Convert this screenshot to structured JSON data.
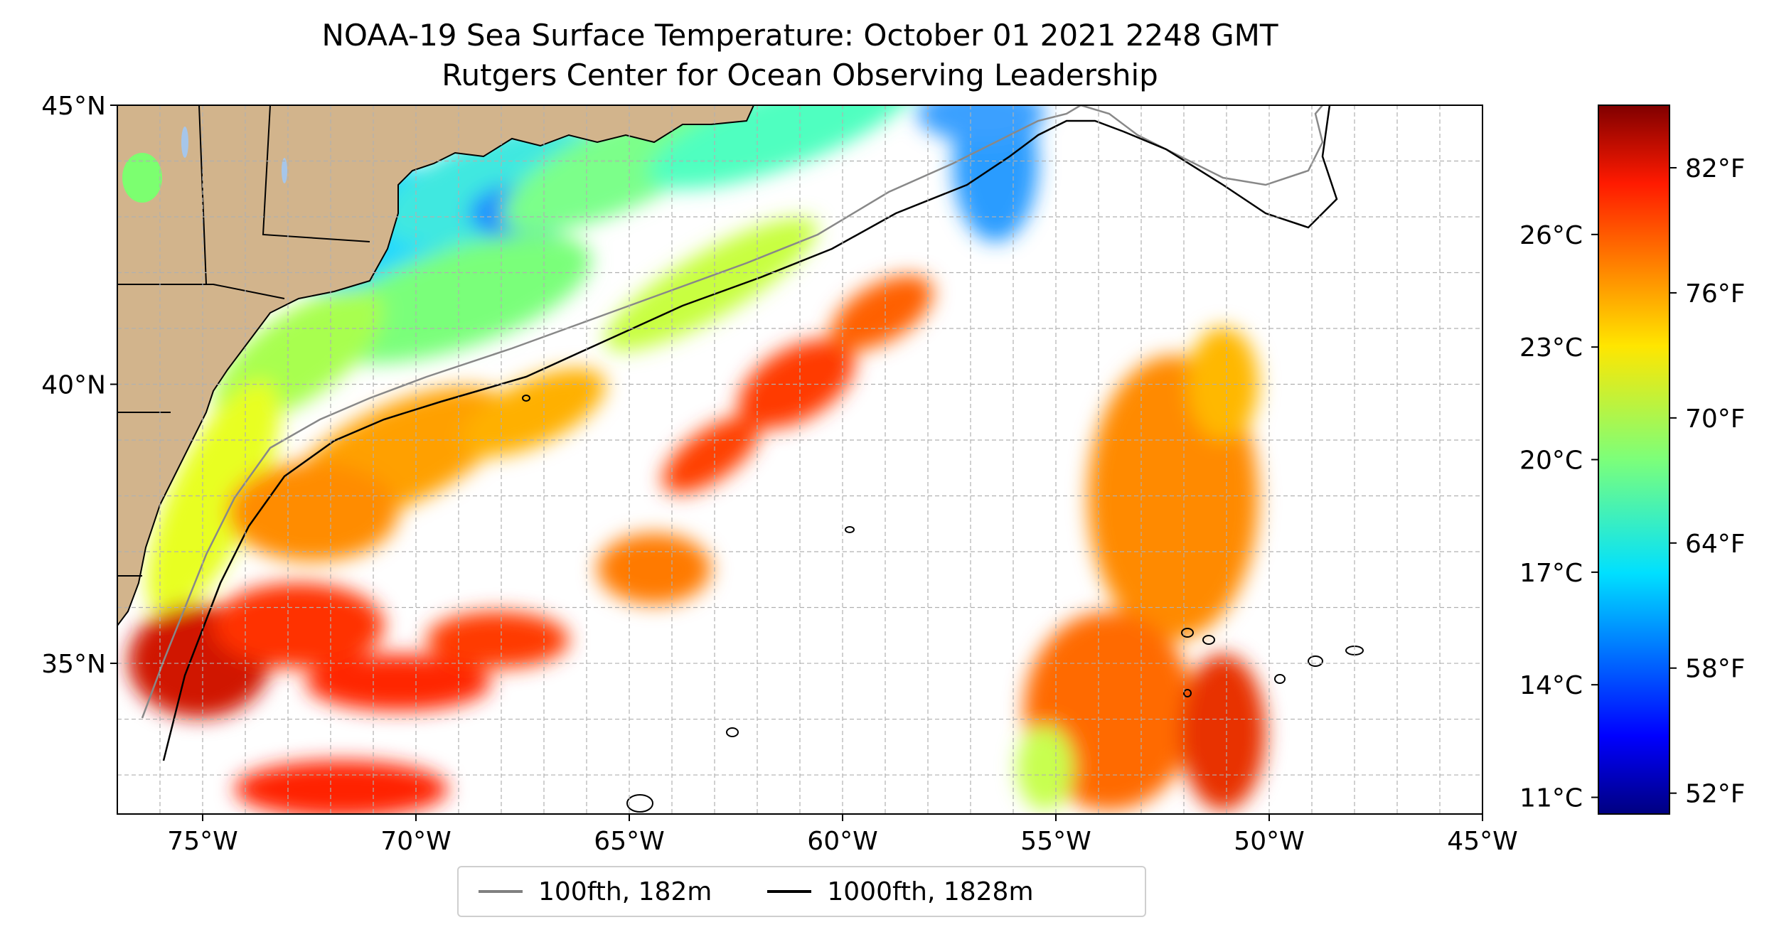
{
  "title": "NOAA-19 Sea Surface Temperature: October 01 2021 2248 GMT",
  "subtitle": "Rutgers Center for Ocean Observing Leadership",
  "map": {
    "lon_ticks": [
      "75°W",
      "70°W",
      "65°W",
      "60°W",
      "55°W",
      "50°W",
      "45°W"
    ],
    "lon_values": [
      -75,
      -70,
      -65,
      -60,
      -55,
      -50,
      -45
    ],
    "lat_ticks": [
      "35°N",
      "40°N",
      "45°N"
    ],
    "lat_values": [
      35,
      40,
      45
    ],
    "extent": {
      "lon_min": -77,
      "lon_max": -45,
      "lat_min": 32.3,
      "lat_max": 45
    },
    "grid": true,
    "land_color": "#d2b48c",
    "lake_color": "#a6c6ea"
  },
  "colorbar": {
    "celsius_ticks": [
      "26°C",
      "23°C",
      "20°C",
      "17°C",
      "14°C",
      "11°C"
    ],
    "celsius_values": [
      26,
      23,
      20,
      17,
      14,
      11
    ],
    "fahrenheit_ticks": [
      "82°F",
      "76°F",
      "70°F",
      "64°F",
      "58°F",
      "52°F"
    ],
    "fahrenheit_values": [
      82,
      76,
      70,
      64,
      58,
      52
    ],
    "range_f": [
      51,
      85
    ],
    "colormap": "jet"
  },
  "legend": {
    "items": [
      {
        "label": "100fth, 182m",
        "color": "#808080"
      },
      {
        "label": "1000fth, 1828m",
        "color": "#000000"
      }
    ]
  }
}
